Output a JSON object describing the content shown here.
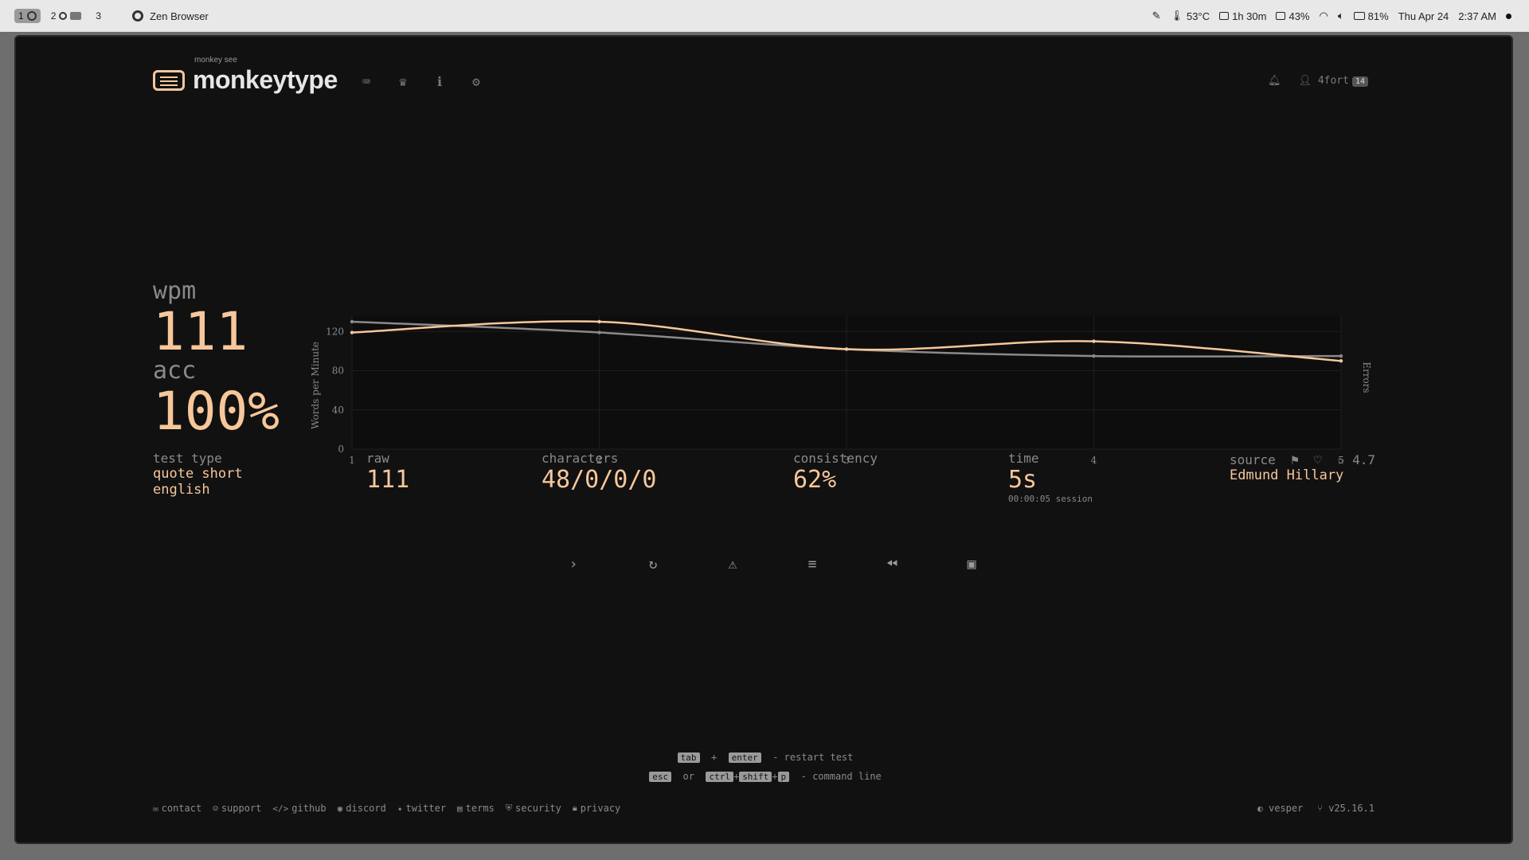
{
  "topbar": {
    "workspaces": [
      "1",
      "2",
      "3"
    ],
    "window_title": "Zen Browser",
    "temp": "53°C",
    "uptime": "1h 30m",
    "cpu": "43%",
    "battery": "81%",
    "date": "Thu Apr 24",
    "time": "2:37 AM"
  },
  "header": {
    "logo_small": "monkey see",
    "logo": "monkeytype",
    "user": "4fort",
    "level": "14"
  },
  "results": {
    "wpm_label": "wpm",
    "wpm": "111",
    "acc_label": "acc",
    "acc": "100%",
    "test_type_label": "test type",
    "test_type_1": "quote short",
    "test_type_2": "english",
    "raw_label": "raw",
    "raw": "111",
    "characters_label": "characters",
    "characters": "48/0/0/0",
    "consistency_label": "consistency",
    "consistency": "62%",
    "time_label": "time",
    "time": "5s",
    "session": "00:00:05 session",
    "source_label": "source",
    "rating": "4.7",
    "source": "Edmund Hillary"
  },
  "chart_data": {
    "type": "line",
    "x": [
      1,
      2,
      3,
      4,
      5
    ],
    "ylabel": "Words per Minute",
    "y2label": "Errors",
    "ylim": [
      0,
      130
    ],
    "yticks": [
      0,
      40,
      80,
      120
    ],
    "series": [
      {
        "key": "wpm",
        "values": [
          119,
          130,
          102,
          110,
          90
        ],
        "color": "#f7c79b"
      },
      {
        "key": "raw",
        "values": [
          130,
          119,
          102,
          95,
          95
        ],
        "color": "#8a8a8a"
      }
    ],
    "grid": true
  },
  "hints": {
    "line1_k1": "tab",
    "line1_plus": "+",
    "line1_k2": "enter",
    "line1_text": "- restart test",
    "line2_k1": "esc",
    "line2_or": "or",
    "line2_k2": "ctrl",
    "line2_k3": "shift",
    "line2_k4": "p",
    "line2_text": "- command line"
  },
  "footer": {
    "links": [
      "contact",
      "support",
      "github",
      "discord",
      "twitter",
      "terms",
      "security",
      "privacy"
    ],
    "theme": "vesper",
    "version": "v25.16.1"
  }
}
